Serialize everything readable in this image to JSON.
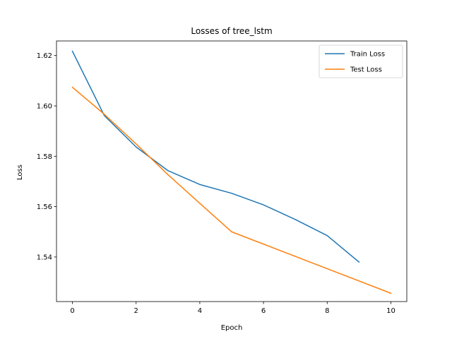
{
  "chart_data": {
    "type": "line",
    "title": "Losses of tree_lstm",
    "xlabel": "Epoch",
    "ylabel": "Loss",
    "xlim": [
      -0.5,
      10.5
    ],
    "ylim": [
      1.5223,
      1.6258
    ],
    "xticks": [
      0,
      2,
      4,
      6,
      8,
      10
    ],
    "yticks": [
      1.54,
      1.56,
      1.58,
      1.6,
      1.62
    ],
    "ytick_labels": [
      "1.54",
      "1.56",
      "1.58",
      "1.60",
      "1.62"
    ],
    "grid": false,
    "legend_position": "top-right",
    "series": [
      {
        "name": "Train Loss",
        "color": "#1f77b4",
        "x": [
          0,
          1,
          2,
          3,
          4,
          5,
          6,
          7,
          8,
          9
        ],
        "y": [
          1.6217,
          1.5962,
          1.5837,
          1.5743,
          1.5688,
          1.5653,
          1.5607,
          1.5549,
          1.5485,
          1.538
        ]
      },
      {
        "name": "Test Loss",
        "color": "#ff7f0e",
        "x": [
          0,
          1,
          2,
          3,
          4,
          5,
          10
        ],
        "y": [
          1.6074,
          1.5967,
          1.5849,
          1.5727,
          1.5613,
          1.55,
          1.5256
        ]
      }
    ]
  }
}
